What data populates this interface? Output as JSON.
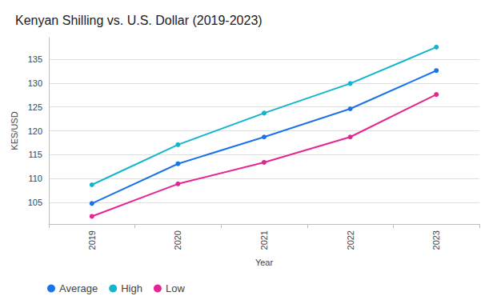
{
  "chart_data": {
    "type": "line",
    "title": "Kenyan Shilling vs. U.S. Dollar (2019-2023)",
    "x_label": "Year",
    "y_label": "KES/USD",
    "categories": [
      "2019",
      "2020",
      "2021",
      "2022",
      "2023"
    ],
    "series": [
      {
        "name": "Average",
        "color": "#1a73e8",
        "values": [
          104.8,
          113.1,
          118.7,
          124.6,
          132.6
        ]
      },
      {
        "name": "High",
        "color": "#12b5cb",
        "values": [
          108.7,
          117.1,
          123.7,
          129.9,
          137.5
        ]
      },
      {
        "name": "Low",
        "color": "#e52592",
        "values": [
          102.1,
          108.9,
          113.4,
          118.7,
          127.6
        ]
      }
    ],
    "ylim": [
      100.5,
      139.5
    ],
    "yticks": [
      105,
      110,
      115,
      120,
      125,
      130,
      135
    ],
    "grid": true,
    "legend": "bottom-left",
    "marker": "circle"
  }
}
